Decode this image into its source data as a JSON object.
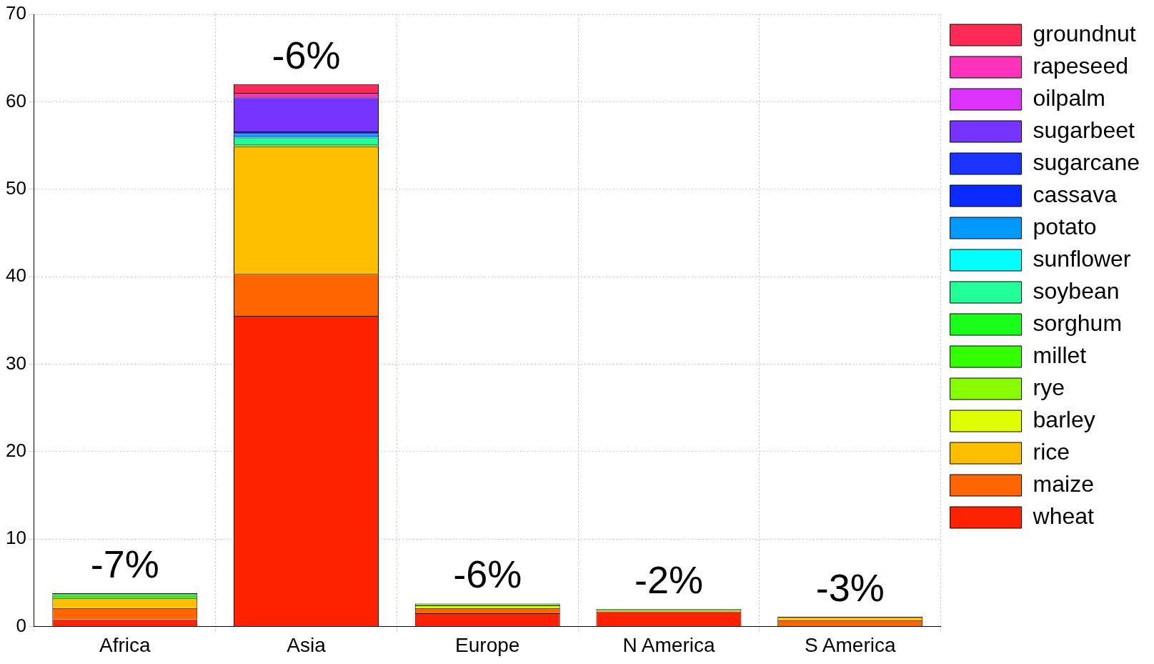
{
  "chart_data": {
    "type": "bar",
    "stacked": true,
    "categories": [
      "Africa",
      "Asia",
      "Europe",
      "N America",
      "S America"
    ],
    "series": [
      {
        "name": "wheat",
        "color": "#ff2200",
        "values": [
          0.8,
          35.5,
          1.5,
          1.7,
          0
        ]
      },
      {
        "name": "maize",
        "color": "#ff6600",
        "values": [
          1.3,
          4.8,
          0.6,
          0,
          0.7
        ]
      },
      {
        "name": "rice",
        "color": "#ffbf00",
        "values": [
          1.1,
          14.6,
          0,
          0,
          0.4
        ]
      },
      {
        "name": "barley",
        "color": "#ddff00",
        "values": [
          0,
          0,
          0.3,
          0.2,
          0
        ]
      },
      {
        "name": "rye",
        "color": "#88ff00",
        "values": [
          0,
          0,
          0.2,
          0.1,
          0
        ]
      },
      {
        "name": "millet",
        "color": "#33ff00",
        "values": [
          0.3,
          0.2,
          0,
          0,
          0
        ]
      },
      {
        "name": "sorghum",
        "color": "#1aff1a",
        "values": [
          0.3,
          0,
          0,
          0,
          0
        ]
      },
      {
        "name": "soybean",
        "color": "#22ff99",
        "values": [
          0,
          0.8,
          0,
          0,
          0
        ]
      },
      {
        "name": "sunflower",
        "color": "#00ffff",
        "values": [
          0,
          0,
          0,
          0,
          0
        ]
      },
      {
        "name": "potato",
        "color": "#0099ff",
        "values": [
          0,
          0.4,
          0,
          0,
          0
        ]
      },
      {
        "name": "cassava",
        "color": "#0a2aff",
        "values": [
          0,
          0.3,
          0,
          0,
          0
        ]
      },
      {
        "name": "sugarcane",
        "color": "#1a33ff",
        "values": [
          0,
          0,
          0,
          0,
          0
        ]
      },
      {
        "name": "sugarbeet",
        "color": "#7733ff",
        "values": [
          0,
          3.9,
          0,
          0,
          0
        ]
      },
      {
        "name": "oilpalm",
        "color": "#dd33ff",
        "values": [
          0,
          0,
          0,
          0,
          0
        ]
      },
      {
        "name": "rapeseed",
        "color": "#ff33bb",
        "values": [
          0,
          0.5,
          0,
          0,
          0
        ]
      },
      {
        "name": "groundnut",
        "color": "#ff2a55",
        "values": [
          0,
          1.0,
          0,
          0,
          0
        ]
      }
    ],
    "ylim": [
      0,
      70
    ],
    "yticks": [
      0,
      10,
      20,
      30,
      40,
      50,
      60,
      70
    ],
    "grid": true,
    "legend": "right",
    "annotations": [
      {
        "text": "-7%",
        "x": "Africa",
        "y": 3.8
      },
      {
        "text": "-6%",
        "x": "Asia",
        "y": 62
      },
      {
        "text": "-6%",
        "x": "Europe",
        "y": 2.6
      },
      {
        "text": "-2%",
        "x": "N America",
        "y": 2.0
      },
      {
        "text": "-3%",
        "x": "S America",
        "y": 1.1
      }
    ]
  }
}
